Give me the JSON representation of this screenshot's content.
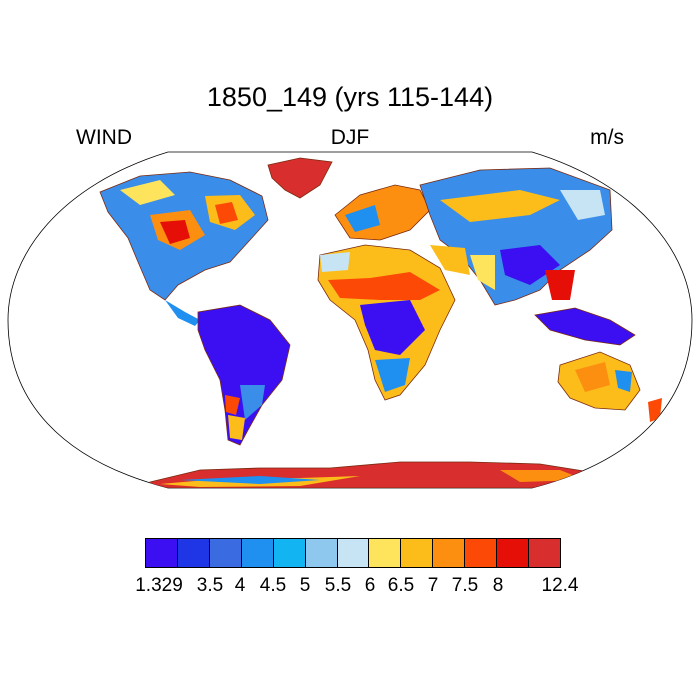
{
  "title": "1850_149 (yrs 115-144)",
  "left_label": "WIND",
  "center_label": "DJF",
  "right_label": "m/s",
  "colorbar": {
    "colors": [
      "#3b0ff2",
      "#1f36e6",
      "#3a6be0",
      "#1f8ff0",
      "#12b4f2",
      "#8fc8ee",
      "#c6e4f4",
      "#fde45c",
      "#fcbd1a",
      "#fc8f10",
      "#fc4a06",
      "#e60f07",
      "#d82e2e"
    ],
    "labels": [
      "1.329",
      "3.5",
      "4",
      "4.5",
      "5",
      "5.5",
      "6",
      "6.5",
      "7",
      "7.5",
      "8",
      "12.4"
    ]
  }
}
